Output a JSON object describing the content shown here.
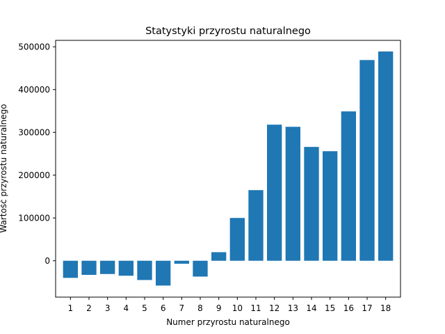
{
  "chart_data": {
    "type": "bar",
    "title": "Statystyki przyrostu naturalnego",
    "xlabel": "Numer przyrostu naturalnego",
    "ylabel": "Wartość przyrostu naturalnego",
    "categories": [
      "1",
      "2",
      "3",
      "4",
      "5",
      "6",
      "7",
      "8",
      "9",
      "10",
      "11",
      "12",
      "13",
      "14",
      "15",
      "16",
      "17",
      "18"
    ],
    "values": [
      -40000,
      -33000,
      -31000,
      -35000,
      -45000,
      -58000,
      -7000,
      -37000,
      20000,
      100000,
      165000,
      318000,
      313000,
      266000,
      256000,
      349000,
      469000,
      489000
    ],
    "ylim": [
      -85000,
      515000
    ],
    "yticks": [
      0,
      100000,
      200000,
      300000,
      400000,
      500000
    ],
    "ytick_labels": [
      "0",
      "100000",
      "200000",
      "300000",
      "400000",
      "500000"
    ],
    "bar_color": "#1f77b4",
    "grid": false
  }
}
